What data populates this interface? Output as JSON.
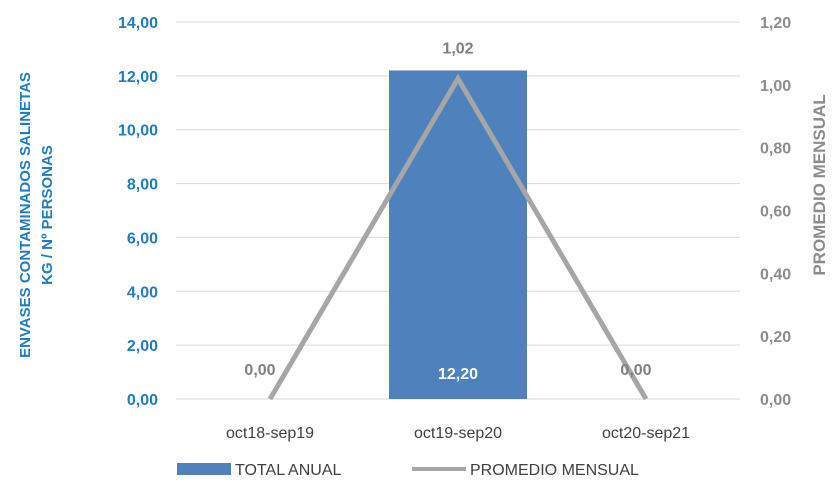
{
  "chart_data": {
    "type": "bar",
    "categories": [
      "oct18-sep19",
      "oct19-sep20",
      "oct20-sep21"
    ],
    "series": [
      {
        "name": "TOTAL ANUAL",
        "kind": "bar",
        "axis": "left",
        "values": [
          0,
          12.2,
          0
        ],
        "labels": [
          "0,00",
          "12,20",
          "0,00"
        ],
        "color": "#4f81bd"
      },
      {
        "name": "PROMEDIO MENSUAL",
        "kind": "line",
        "axis": "right",
        "values": [
          0,
          1.02,
          0
        ],
        "labels": [
          "",
          "1,02",
          ""
        ],
        "color": "#a6a6a6"
      }
    ],
    "ylabel_left": [
      "ENVASES CONTAMINADOS SALINETAS",
      "KG / Nº PERSONAS"
    ],
    "ylabel_right": "PROMEDIO MENSUAL",
    "ylim_left": [
      0,
      14
    ],
    "ylim_right": [
      0,
      1.2
    ],
    "yticks_left": [
      "0,00",
      "2,00",
      "4,00",
      "6,00",
      "8,00",
      "10,00",
      "12,00",
      "14,00"
    ],
    "yticks_right": [
      "0,00",
      "0,20",
      "0,40",
      "0,60",
      "0,80",
      "1,00",
      "1,20"
    ],
    "grid": true,
    "legend_position": "bottom",
    "colors": {
      "left_axis": "#1f7cc1",
      "right_axis": "#8c8c8c",
      "grid": "#d9d9d9"
    }
  }
}
